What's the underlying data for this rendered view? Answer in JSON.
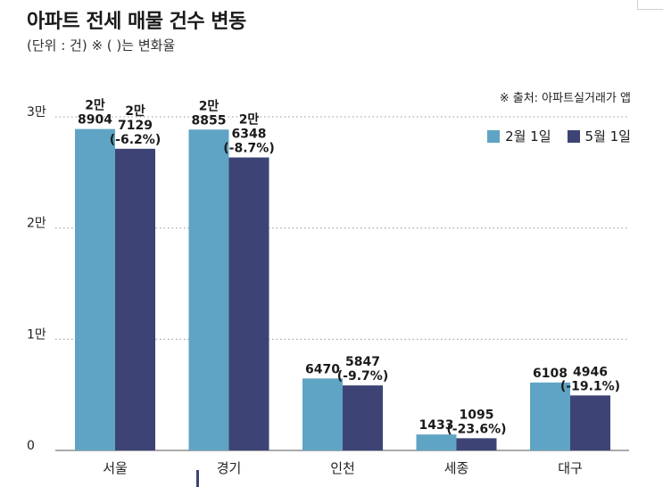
{
  "title": "아파트 전세 매물 건수 변동",
  "subtitle": "(단위 : 건) ※ ( )는 변화율",
  "source": "※ 출처: 아파트실거래가 앱",
  "colors": {
    "series1": "#5fa4c4",
    "series2": "#3d4475",
    "grid": "#999999"
  },
  "chart_data": {
    "type": "bar",
    "title": "아파트 전세 매물 건수 변동",
    "categories": [
      "서울",
      "경기",
      "인천",
      "세종",
      "대구"
    ],
    "series": [
      {
        "name": "2월 1일",
        "values": [
          28904,
          28855,
          6470,
          1433,
          6108
        ]
      },
      {
        "name": "5월 1일",
        "values": [
          27129,
          26348,
          5847,
          1095,
          4946
        ]
      }
    ],
    "series1_labels": [
      [
        "2만",
        "8904"
      ],
      [
        "2만",
        "8855"
      ],
      [
        "6470"
      ],
      [
        "1433"
      ],
      [
        "6108"
      ]
    ],
    "series2_labels": [
      [
        "2만",
        "7129",
        "(-6.2%)"
      ],
      [
        "2만",
        "6348",
        "(-8.7%)"
      ],
      [
        "5847",
        "(-9.7%)"
      ],
      [
        "1095",
        "(-23.6%)"
      ],
      [
        "4946",
        "(-19.1%)"
      ]
    ],
    "yticks": [
      {
        "value": 0,
        "label": "0"
      },
      {
        "value": 10000,
        "label": "1만"
      },
      {
        "value": 20000,
        "label": "2만"
      },
      {
        "value": 30000,
        "label": "3만"
      }
    ],
    "ylim": [
      0,
      30000
    ],
    "grid": true,
    "legend_position": "top-right"
  }
}
